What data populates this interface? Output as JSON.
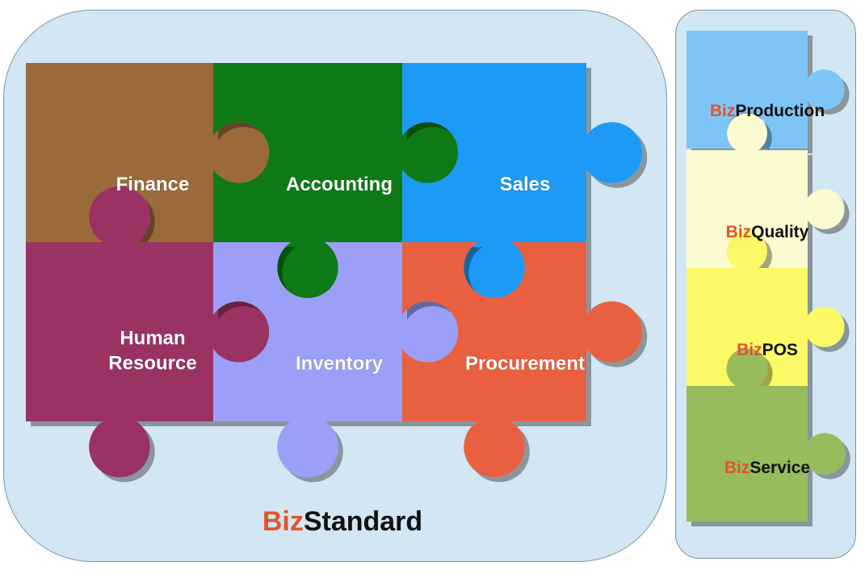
{
  "main_pieces": [
    {
      "id": "finance",
      "label_lines": [
        "Finance"
      ],
      "color": "#9b6a3a"
    },
    {
      "id": "accounting",
      "label_lines": [
        "Accounting"
      ],
      "color": "#0d7a12"
    },
    {
      "id": "sales",
      "label_lines": [
        "Sales"
      ],
      "color": "#1a9af5"
    },
    {
      "id": "human-resource",
      "label_lines": [
        "Human",
        "Resource"
      ],
      "color": "#9a3163"
    },
    {
      "id": "inventory",
      "label_lines": [
        "Inventory"
      ],
      "color": "#9b9ff7"
    },
    {
      "id": "procurement",
      "label_lines": [
        "Procurement"
      ],
      "color": "#e8613f"
    }
  ],
  "side_pieces": [
    {
      "id": "production",
      "prefix": "Biz",
      "suffix": "Production",
      "color": "#7ec5f7"
    },
    {
      "id": "quality",
      "prefix": "Biz",
      "suffix": "Quality",
      "color": "#fbfad0"
    },
    {
      "id": "pos",
      "prefix": "Biz",
      "suffix": "POS",
      "color": "#fbf966"
    },
    {
      "id": "service",
      "prefix": "Biz",
      "suffix": "Service",
      "color": "#96bc5c"
    }
  ],
  "brand": {
    "prefix": "Biz",
    "suffix": "Standard"
  },
  "colors": {
    "biz_prefix": "#e0552e",
    "text_dark": "#111111",
    "panel_bg": "#d2e6f3",
    "panel_border": "#7e93a5"
  }
}
